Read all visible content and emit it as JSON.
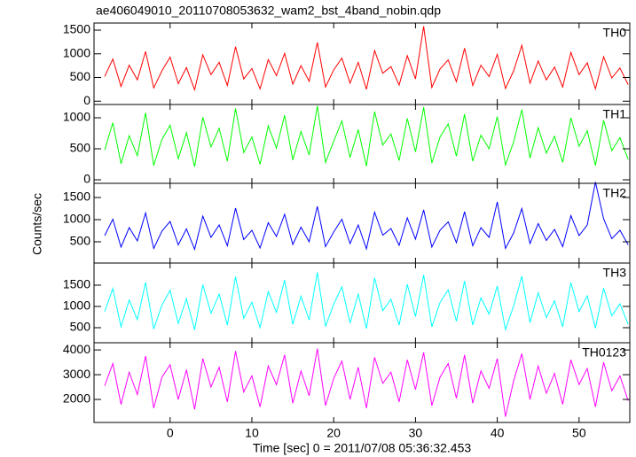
{
  "chart_data": [
    {
      "type": "line",
      "title": "ae406049010_20110708053632_wam2_bst_4band_nobin.qdp",
      "x": [
        -8,
        -7,
        -6,
        -5,
        -4,
        -3,
        -2,
        -1,
        0,
        1,
        2,
        3,
        4,
        5,
        6,
        7,
        8,
        9,
        10,
        11,
        12,
        13,
        14,
        15,
        16,
        17,
        18,
        19,
        20,
        21,
        22,
        23,
        24,
        25,
        26,
        27,
        28,
        29,
        30,
        31,
        32,
        33,
        34,
        35,
        36,
        37,
        38,
        39,
        40,
        41,
        42,
        43,
        44,
        45,
        46,
        47,
        48,
        49,
        50,
        51,
        52,
        53,
        54,
        55,
        56
      ],
      "series": [
        {
          "name": "TH0",
          "color": "#ff0000",
          "values": [
            520,
            890,
            310,
            760,
            450,
            1050,
            280,
            640,
            930,
            370,
            710,
            240,
            980,
            560,
            820,
            330,
            1150,
            470,
            690,
            260,
            880,
            540,
            1010,
            360,
            750,
            420,
            1240,
            300,
            660,
            910,
            380,
            820,
            250,
            1070,
            590,
            730,
            340,
            960,
            470,
            1580,
            290,
            680,
            870,
            410,
            1120,
            330,
            760,
            520,
            990,
            270,
            640,
            1180,
            380,
            850,
            450,
            720,
            300,
            1030,
            560,
            810,
            260,
            940,
            490,
            700,
            350
          ]
        }
      ],
      "xlim": [
        -9.3,
        56.2
      ],
      "xticks": [
        0,
        10,
        20,
        30,
        40,
        50
      ],
      "ylim": [
        -70,
        1650
      ],
      "yticks": [
        0,
        500,
        1000,
        1500
      ]
    },
    {
      "type": "line",
      "x": [
        -8,
        -7,
        -6,
        -5,
        -4,
        -3,
        -2,
        -1,
        0,
        1,
        2,
        3,
        4,
        5,
        6,
        7,
        8,
        9,
        10,
        11,
        12,
        13,
        14,
        15,
        16,
        17,
        18,
        19,
        20,
        21,
        22,
        23,
        24,
        25,
        26,
        27,
        28,
        29,
        30,
        31,
        32,
        33,
        34,
        35,
        36,
        37,
        38,
        39,
        40,
        41,
        42,
        43,
        44,
        45,
        46,
        47,
        48,
        49,
        50,
        51,
        52,
        53,
        54,
        55,
        56
      ],
      "series": [
        {
          "name": "TH1",
          "color": "#00ff00",
          "values": [
            480,
            920,
            260,
            710,
            390,
            1080,
            230,
            650,
            880,
            340,
            760,
            210,
            1010,
            530,
            830,
            300,
            1150,
            440,
            690,
            250,
            870,
            510,
            1040,
            320,
            780,
            400,
            1190,
            280,
            620,
            950,
            360,
            810,
            220,
            1100,
            560,
            740,
            310,
            990,
            450,
            1170,
            270,
            690,
            900,
            380,
            1060,
            300,
            720,
            500,
            1020,
            240,
            610,
            1130,
            350,
            840,
            430,
            700,
            280,
            1000,
            540,
            790,
            230,
            960,
            470,
            680,
            330
          ]
        }
      ],
      "xlim": [
        -9.3,
        56.2
      ],
      "xticks": [
        0,
        10,
        20,
        30,
        40,
        50
      ],
      "ylim": [
        -57,
        1214
      ],
      "yticks": [
        0,
        500,
        1000
      ]
    },
    {
      "type": "line",
      "ylabel": "Counts/sec",
      "x": [
        -8,
        -7,
        -6,
        -5,
        -4,
        -3,
        -2,
        -1,
        0,
        1,
        2,
        3,
        4,
        5,
        6,
        7,
        8,
        9,
        10,
        11,
        12,
        13,
        14,
        15,
        16,
        17,
        18,
        19,
        20,
        21,
        22,
        23,
        24,
        25,
        26,
        27,
        28,
        29,
        30,
        31,
        32,
        33,
        34,
        35,
        36,
        37,
        38,
        39,
        40,
        41,
        42,
        43,
        44,
        45,
        46,
        47,
        48,
        49,
        50,
        51,
        52,
        53,
        54,
        55,
        56
      ],
      "series": [
        {
          "name": "TH2",
          "color": "#0000ff",
          "values": [
            640,
            1010,
            380,
            820,
            520,
            1150,
            350,
            740,
            960,
            430,
            790,
            330,
            1080,
            600,
            880,
            410,
            1260,
            550,
            760,
            360,
            930,
            620,
            1120,
            440,
            830,
            500,
            1300,
            390,
            720,
            1010,
            460,
            880,
            340,
            1170,
            650,
            800,
            420,
            1040,
            560,
            1220,
            380,
            760,
            950,
            480,
            1180,
            410,
            820,
            600,
            1400,
            350,
            700,
            1250,
            460,
            910,
            530,
            780,
            390,
            1090,
            640,
            880,
            1850,
            1020,
            570,
            760,
            430
          ]
        }
      ],
      "xlim": [
        -9.3,
        56.2
      ],
      "xticks": [
        0,
        10,
        20,
        30,
        40,
        50
      ],
      "ylim": [
        20,
        1820
      ],
      "yticks": [
        500,
        1000,
        1500
      ]
    },
    {
      "type": "line",
      "x": [
        -8,
        -7,
        -6,
        -5,
        -4,
        -3,
        -2,
        -1,
        0,
        1,
        2,
        3,
        4,
        5,
        6,
        7,
        8,
        9,
        10,
        11,
        12,
        13,
        14,
        15,
        16,
        17,
        18,
        19,
        20,
        21,
        22,
        23,
        24,
        25,
        26,
        27,
        28,
        29,
        30,
        31,
        32,
        33,
        34,
        35,
        36,
        37,
        38,
        39,
        40,
        41,
        42,
        43,
        44,
        45,
        46,
        47,
        48,
        49,
        50,
        51,
        52,
        53,
        54,
        55,
        56
      ],
      "series": [
        {
          "name": "TH3",
          "color": "#00ffff",
          "values": [
            880,
            1420,
            520,
            1150,
            690,
            1560,
            470,
            1030,
            1380,
            600,
            1180,
            450,
            1510,
            840,
            1290,
            560,
            1700,
            720,
            1100,
            500,
            1350,
            860,
            1620,
            580,
            1240,
            680,
            1800,
            530,
            1050,
            1460,
            610,
            1290,
            480,
            1670,
            900,
            1170,
            560,
            1520,
            760,
            1740,
            520,
            1090,
            1390,
            650,
            1600,
            560,
            1200,
            820,
            1480,
            460,
            1010,
            1710,
            620,
            1320,
            740,
            1130,
            520,
            1560,
            880,
            1250,
            490,
            1430,
            780,
            1060,
            580
          ]
        }
      ],
      "xlim": [
        -9.3,
        56.2
      ],
      "xticks": [
        0,
        10,
        20,
        30,
        40,
        50
      ],
      "ylim": [
        146,
        2020
      ],
      "yticks": [
        500,
        1000,
        1500
      ]
    },
    {
      "type": "line",
      "xlabel": "Time [sec] 0 = 2011/07/08 05:36:32.453",
      "x": [
        -8,
        -7,
        -6,
        -5,
        -4,
        -3,
        -2,
        -1,
        0,
        1,
        2,
        3,
        4,
        5,
        6,
        7,
        8,
        9,
        10,
        11,
        12,
        13,
        14,
        15,
        16,
        17,
        18,
        19,
        20,
        21,
        22,
        23,
        24,
        25,
        26,
        27,
        28,
        29,
        30,
        31,
        32,
        33,
        34,
        35,
        36,
        37,
        38,
        39,
        40,
        41,
        42,
        43,
        44,
        45,
        46,
        47,
        48,
        49,
        50,
        51,
        52,
        53,
        54,
        55,
        56
      ],
      "series": [
        {
          "name": "TH0123",
          "color": "#ff00ff",
          "values": [
            2550,
            3450,
            1800,
            3100,
            2200,
            3750,
            1650,
            2900,
            3400,
            2000,
            3200,
            1600,
            3650,
            2500,
            3300,
            1900,
            3950,
            2300,
            2950,
            1700,
            3350,
            2600,
            3800,
            1850,
            3150,
            2150,
            4050,
            1750,
            2850,
            3550,
            2000,
            3300,
            1650,
            3700,
            2650,
            3100,
            1900,
            3600,
            2400,
            3900,
            1750,
            2900,
            3450,
            2050,
            3800,
            1850,
            3150,
            2450,
            3650,
            1300,
            2750,
            3850,
            2000,
            3350,
            2250,
            3050,
            1800,
            3600,
            2600,
            3250,
            1700,
            3500,
            2350,
            2950,
            1950
          ]
        }
      ],
      "xlim": [
        -9.3,
        56.2
      ],
      "xticks": [
        0,
        10,
        20,
        30,
        40,
        50
      ],
      "ylim": [
        1070,
        4290
      ],
      "yticks": [
        2000,
        3000,
        4000
      ]
    }
  ]
}
